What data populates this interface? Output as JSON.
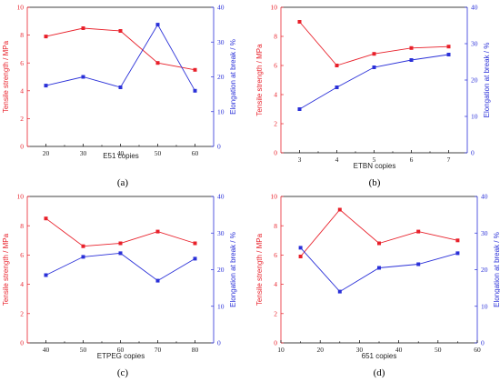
{
  "colors": {
    "tensile": "#e8202a",
    "elongation": "#2a30d8",
    "frame": "#000000"
  },
  "chart_data": [
    {
      "type": "line",
      "panel_label": "(a)",
      "xlabel": "E51 copies",
      "ylabel_left": "Tensile strength / MPa",
      "ylabel_right": "Elongation at break / %",
      "xlim": [
        15,
        65
      ],
      "xticks": [
        20,
        30,
        40,
        50,
        60
      ],
      "xtick_labels": [
        "20",
        "30",
        "40",
        "50",
        "60"
      ],
      "ylim_left": [
        0,
        10
      ],
      "yticks_left": [
        0,
        2,
        4,
        6,
        8,
        10
      ],
      "ytick_labels_left": [
        "0",
        "2",
        "4",
        "6",
        "8",
        "10"
      ],
      "ylim_right": [
        0,
        40
      ],
      "yticks_right": [
        0,
        10,
        20,
        30,
        40
      ],
      "ytick_labels_right": [
        "0",
        "10",
        "20",
        "30",
        "40"
      ],
      "series": [
        {
          "name": "Tensile strength",
          "axis": "left",
          "x": [
            20,
            30,
            40,
            50,
            60
          ],
          "values": [
            7.9,
            8.5,
            8.3,
            6.0,
            5.5
          ]
        },
        {
          "name": "Elongation at break",
          "axis": "right",
          "x": [
            20,
            30,
            40,
            50,
            60
          ],
          "values": [
            17.5,
            20.0,
            17.0,
            35.0,
            16.0
          ]
        }
      ]
    },
    {
      "type": "line",
      "panel_label": "(b)",
      "xlabel": "ETBN copies",
      "ylabel_left": "Tensile strength / MPa",
      "ylabel_right": "Elongation at break / %",
      "xlim": [
        2.5,
        7.5
      ],
      "xticks": [
        3,
        4,
        5,
        6,
        7
      ],
      "xtick_labels": [
        "3",
        "4",
        "5",
        "6",
        "7"
      ],
      "ylim_left": [
        0,
        10
      ],
      "yticks_left": [
        0,
        2,
        4,
        6,
        8,
        10
      ],
      "ytick_labels_left": [
        "0",
        "2",
        "4",
        "6",
        "8",
        "10"
      ],
      "ylim_right": [
        0,
        40
      ],
      "yticks_right": [
        0,
        10,
        20,
        30,
        40
      ],
      "ytick_labels_right": [
        "0",
        "10",
        "20",
        "30",
        "40"
      ],
      "series": [
        {
          "name": "Tensile strength",
          "axis": "left",
          "x": [
            3,
            4,
            5,
            6,
            7
          ],
          "values": [
            9.0,
            6.0,
            6.8,
            7.2,
            7.3
          ]
        },
        {
          "name": "Elongation at break",
          "axis": "right",
          "x": [
            3,
            4,
            5,
            6,
            7
          ],
          "values": [
            12.0,
            18.0,
            23.5,
            25.5,
            27.0
          ]
        }
      ]
    },
    {
      "type": "line",
      "panel_label": "(c)",
      "xlabel": "ETPEG copies",
      "ylabel_left": "Tensile strength / MPa",
      "ylabel_right": "Elongation at break / %",
      "xlim": [
        35,
        85
      ],
      "xticks": [
        40,
        50,
        60,
        70,
        80
      ],
      "xtick_labels": [
        "40",
        "50",
        "60",
        "70",
        "80"
      ],
      "ylim_left": [
        0,
        10
      ],
      "yticks_left": [
        0,
        2,
        4,
        6,
        8,
        10
      ],
      "ytick_labels_left": [
        "0",
        "2",
        "4",
        "6",
        "8",
        "10"
      ],
      "ylim_right": [
        0,
        40
      ],
      "yticks_right": [
        0,
        10,
        20,
        30,
        40
      ],
      "ytick_labels_right": [
        "0",
        "10",
        "20",
        "30",
        "40"
      ],
      "series": [
        {
          "name": "Tensile strength",
          "axis": "left",
          "x": [
            40,
            50,
            60,
            70,
            80
          ],
          "values": [
            8.5,
            6.6,
            6.8,
            7.6,
            6.8
          ]
        },
        {
          "name": "Elongation at break",
          "axis": "right",
          "x": [
            40,
            50,
            60,
            70,
            80
          ],
          "values": [
            18.5,
            23.5,
            24.5,
            17.0,
            23.0
          ]
        }
      ]
    },
    {
      "type": "line",
      "panel_label": "(d)",
      "xlabel": "651 copies",
      "ylabel_left": "Tensile strength / MPa",
      "ylabel_right": "Elongation at break / %",
      "xlim": [
        10,
        60
      ],
      "xticks": [
        10,
        20,
        30,
        40,
        50,
        60
      ],
      "xtick_labels": [
        "10",
        "20",
        "30",
        "40",
        "50",
        "60"
      ],
      "ylim_left": [
        0,
        10
      ],
      "yticks_left": [
        0,
        2,
        4,
        6,
        8,
        10
      ],
      "ytick_labels_left": [
        "0",
        "2",
        "4",
        "6",
        "8",
        "10"
      ],
      "ylim_right": [
        0,
        40
      ],
      "yticks_right": [
        0,
        10,
        20,
        30,
        40
      ],
      "ytick_labels_right": [
        "0",
        "10",
        "20",
        "30",
        "40"
      ],
      "series": [
        {
          "name": "Tensile strength",
          "axis": "left",
          "x": [
            15,
            25,
            35,
            45,
            55
          ],
          "values": [
            5.9,
            9.1,
            6.8,
            7.6,
            7.0
          ]
        },
        {
          "name": "Elongation at break",
          "axis": "right",
          "x": [
            15,
            25,
            35,
            45,
            55
          ],
          "values": [
            26.0,
            14.0,
            20.5,
            21.5,
            24.5
          ]
        }
      ]
    }
  ]
}
